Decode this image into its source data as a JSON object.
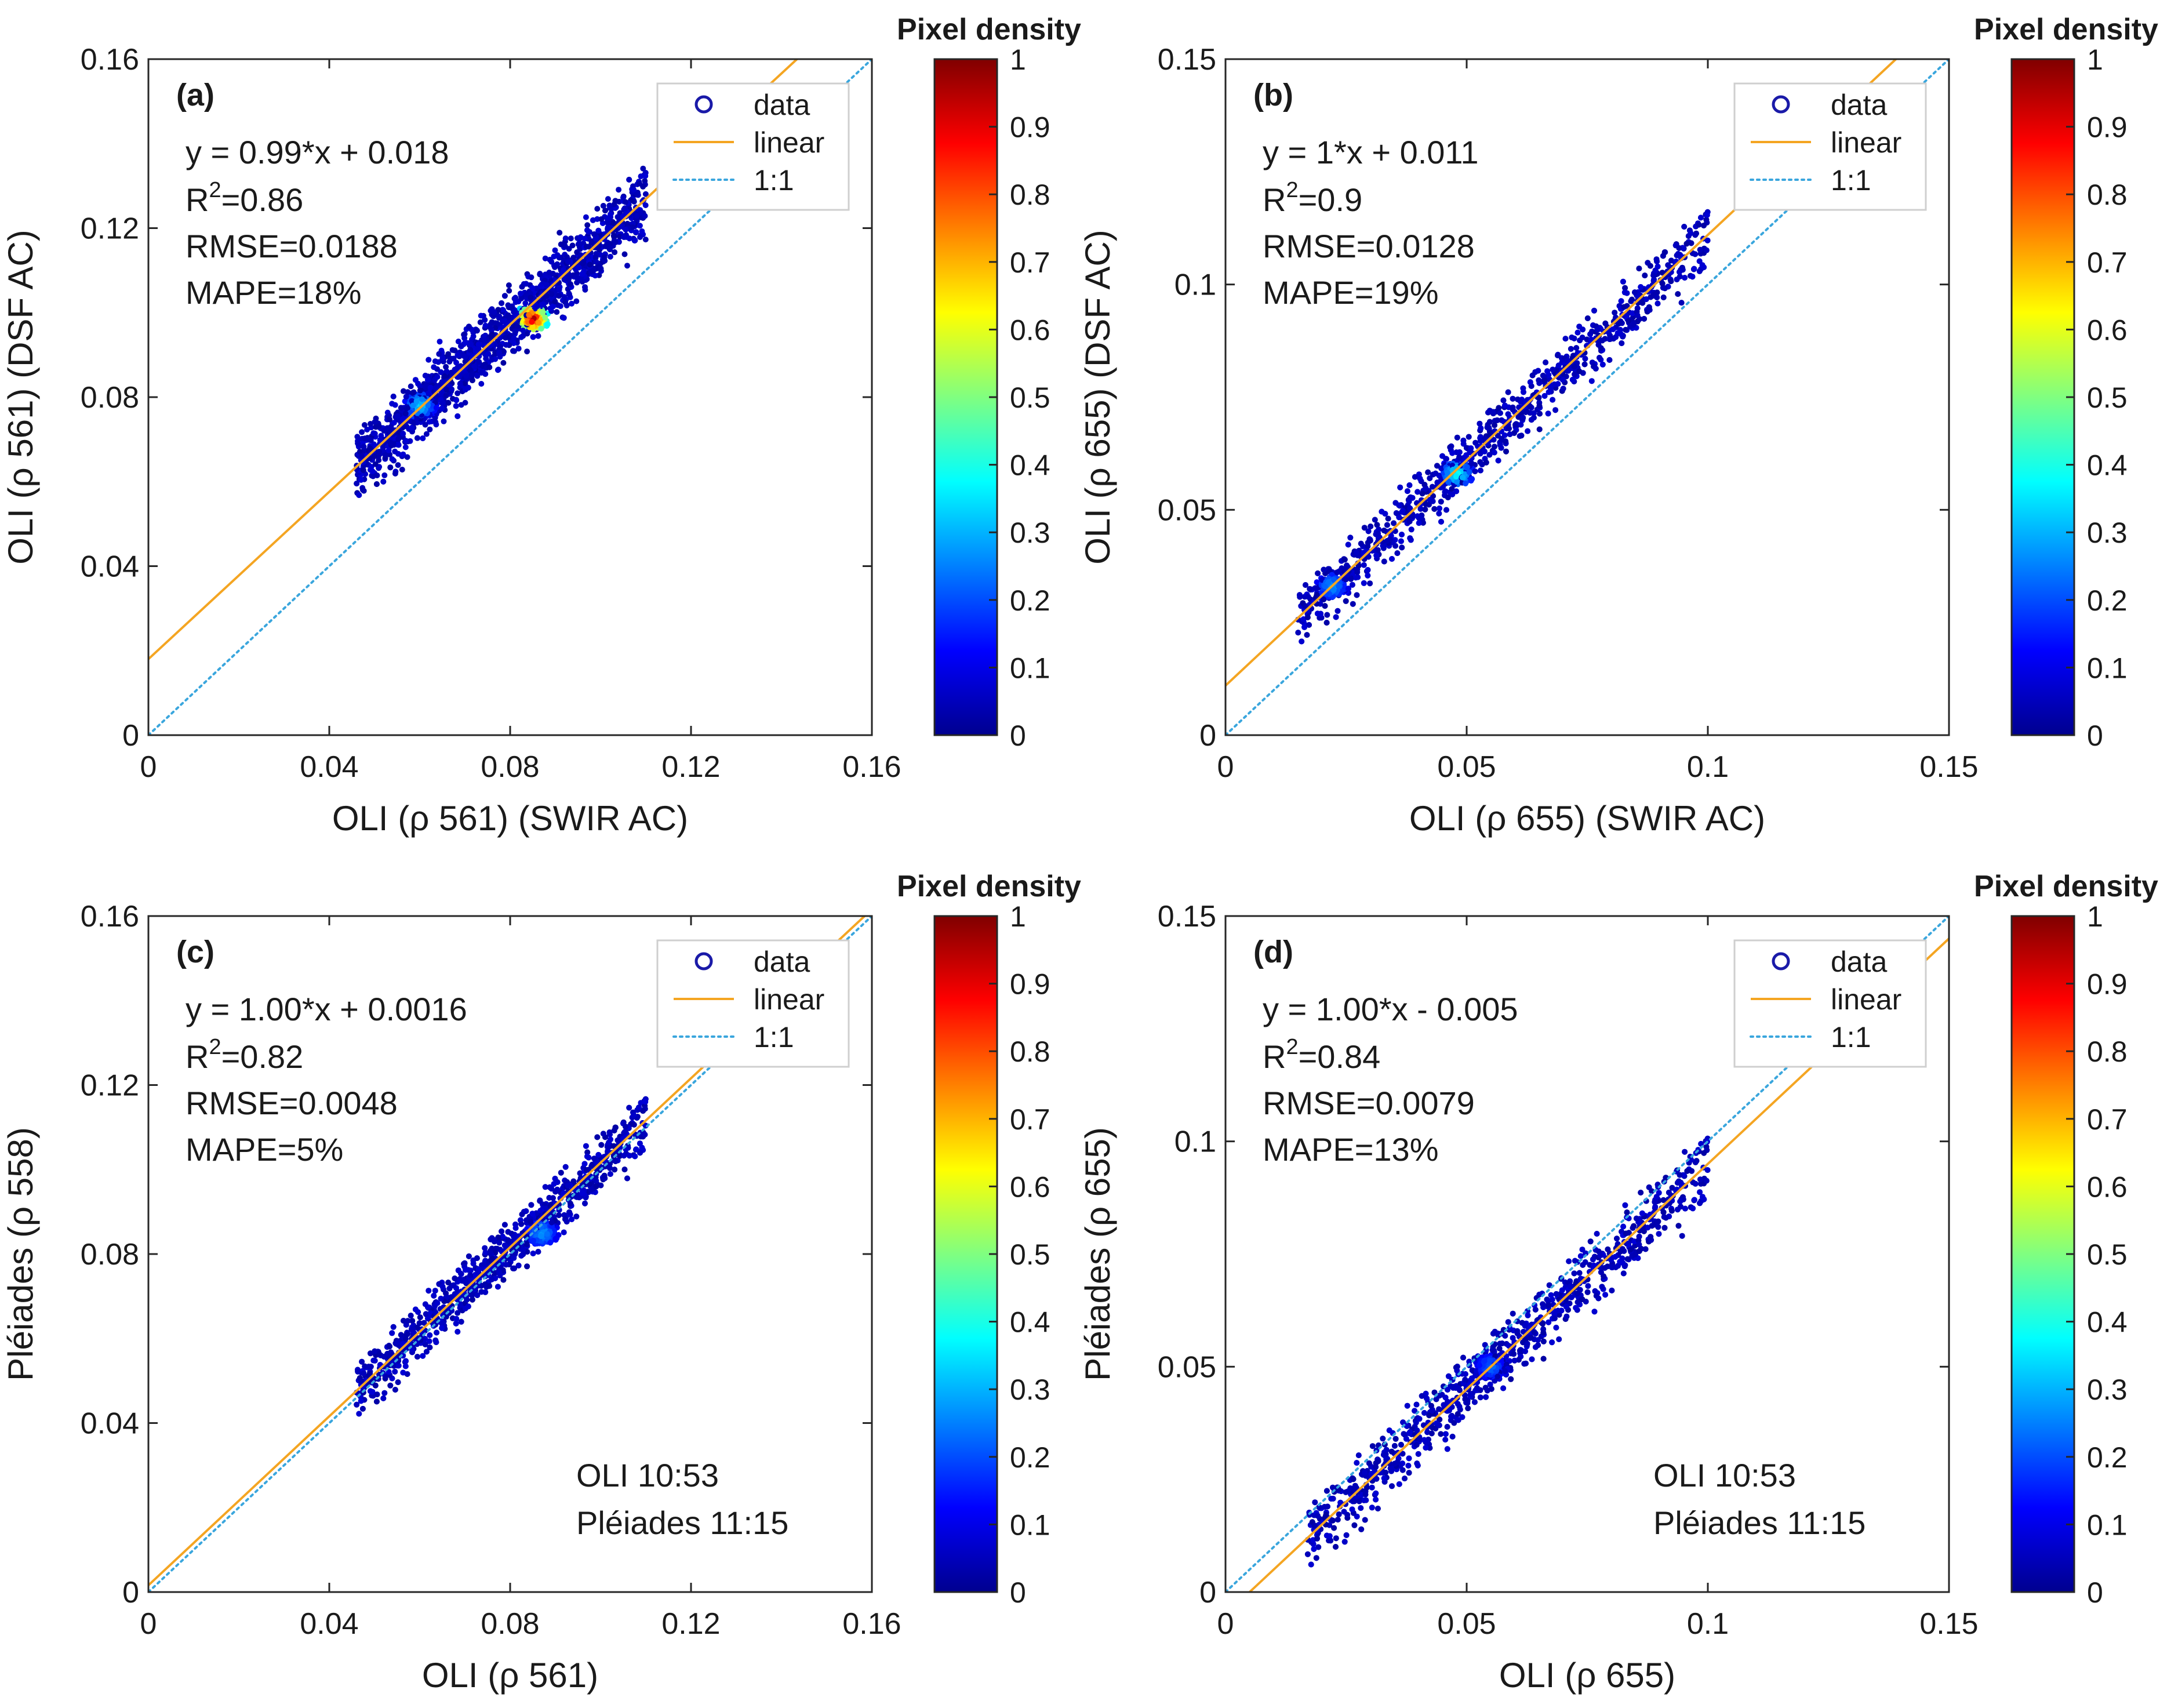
{
  "chart_data": [
    {
      "type": "scatter",
      "id": "a",
      "panel_label": "(a)",
      "xlabel": "OLI (ρ 561) (SWIR AC)",
      "ylabel": "OLI (ρ 561) (DSF AC)",
      "xlim": [
        0,
        0.16
      ],
      "ylim": [
        0,
        0.16
      ],
      "xticks": [
        0,
        0.04,
        0.08,
        0.12,
        0.16
      ],
      "yticks": [
        0,
        0.04,
        0.08,
        0.12,
        0.16
      ],
      "xtick_labels": [
        "0",
        "0.04",
        "0.08",
        "0.12",
        "0.16"
      ],
      "ytick_labels": [
        "0",
        "0.04",
        "0.08",
        "0.12",
        "0.16"
      ],
      "fit": {
        "slope": 0.99,
        "intercept": 0.018
      },
      "equation": "y = 0.99*x + 0.018",
      "r2_prefix": "R",
      "r2_sup": "2",
      "r2_value": "=0.86",
      "rmse": "RMSE=0.0188",
      "mape": "MAPE=18%",
      "note": [],
      "legend": [
        "data",
        "linear",
        "1:1"
      ],
      "data_range": {
        "x": [
          0.046,
          0.11
        ],
        "y_spread": 0.0055
      },
      "density_peaks": [
        {
          "x": 0.085,
          "y": 0.0985,
          "density": 1.0
        },
        {
          "x": 0.06,
          "y": 0.078,
          "density": 0.35
        }
      ]
    },
    {
      "type": "scatter",
      "id": "b",
      "panel_label": "(b)",
      "xlabel": "OLI (ρ 655) (SWIR AC)",
      "ylabel": "OLI (ρ 655) (DSF AC)",
      "xlim": [
        0,
        0.15
      ],
      "ylim": [
        0,
        0.15
      ],
      "xticks": [
        0,
        0.05,
        0.1,
        0.15
      ],
      "yticks": [
        0,
        0.05,
        0.1,
        0.15
      ],
      "xtick_labels": [
        "0",
        "0.05",
        "0.1",
        "0.15"
      ],
      "ytick_labels": [
        "0",
        "0.05",
        "0.1",
        "0.15"
      ],
      "fit": {
        "slope": 1.0,
        "intercept": 0.011
      },
      "equation": "y = 1*x + 0.011",
      "r2_prefix": "R",
      "r2_sup": "2",
      "r2_value": "=0.9",
      "rmse": "RMSE=0.0128",
      "mape": "MAPE=19%",
      "note": [],
      "legend": [
        "data",
        "linear",
        "1:1"
      ],
      "data_range": {
        "x": [
          0.015,
          0.1
        ],
        "y_spread": 0.0045
      },
      "density_peaks": [
        {
          "x": 0.048,
          "y": 0.058,
          "density": 0.4
        },
        {
          "x": 0.022,
          "y": 0.033,
          "density": 0.3
        }
      ]
    },
    {
      "type": "scatter",
      "id": "c",
      "panel_label": "(c)",
      "xlabel": "OLI (ρ 561)",
      "ylabel": "Pléiades (ρ 558)",
      "xlim": [
        0,
        0.16
      ],
      "ylim": [
        0,
        0.16
      ],
      "xticks": [
        0,
        0.04,
        0.08,
        0.12,
        0.16
      ],
      "yticks": [
        0,
        0.04,
        0.08,
        0.12,
        0.16
      ],
      "xtick_labels": [
        "0",
        "0.04",
        "0.08",
        "0.12",
        "0.16"
      ],
      "ytick_labels": [
        "0",
        "0.04",
        "0.08",
        "0.12",
        "0.16"
      ],
      "fit": {
        "slope": 1.0,
        "intercept": 0.0016
      },
      "equation": "y = 1.00*x + 0.0016",
      "r2_prefix": "R",
      "r2_sup": "2",
      "r2_value": "=0.82",
      "rmse": "RMSE=0.0048",
      "mape": "MAPE=5%",
      "note": [
        "OLI 10:53",
        "Pléiades 11:15"
      ],
      "legend": [
        "data",
        "linear",
        "1:1"
      ],
      "data_range": {
        "x": [
          0.046,
          0.11
        ],
        "y_spread": 0.0045
      },
      "density_peaks": [
        {
          "x": 0.087,
          "y": 0.085,
          "density": 0.3
        }
      ]
    },
    {
      "type": "scatter",
      "id": "d",
      "panel_label": "(d)",
      "xlabel": "OLI (ρ 655)",
      "ylabel": "Pléiades (ρ 655)",
      "xlim": [
        0,
        0.15
      ],
      "ylim": [
        0,
        0.15
      ],
      "xticks": [
        0,
        0.05,
        0.1,
        0.15
      ],
      "yticks": [
        0,
        0.05,
        0.1,
        0.15
      ],
      "xtick_labels": [
        "0",
        "0.05",
        "0.1",
        "0.15"
      ],
      "ytick_labels": [
        "0",
        "0.05",
        "0.1",
        "0.15"
      ],
      "fit": {
        "slope": 1.0,
        "intercept": -0.005
      },
      "equation": "y = 1.00*x - 0.005",
      "r2_prefix": "R",
      "r2_sup": "2",
      "r2_value": "=0.84",
      "rmse": "RMSE=0.0079",
      "mape": "MAPE=13%",
      "note": [
        "OLI 10:53",
        "Pléiades 11:15"
      ],
      "legend": [
        "data",
        "linear",
        "1:1"
      ],
      "data_range": {
        "x": [
          0.017,
          0.1
        ],
        "y_spread": 0.005
      },
      "density_peaks": [
        {
          "x": 0.055,
          "y": 0.05,
          "density": 0.25
        }
      ]
    }
  ],
  "colorbar": {
    "title": "Pixel density",
    "ticks": [
      "0",
      "0.1",
      "0.2",
      "0.3",
      "0.4",
      "0.5",
      "0.6",
      "0.7",
      "0.8",
      "0.9",
      "1"
    ]
  },
  "colors": {
    "fit_line": "#f4a522",
    "one_to_one": "#3aa6dd",
    "data_marker": "#1a1aa8",
    "jet": [
      "#00008f",
      "#0000ff",
      "#0080ff",
      "#00ffff",
      "#80ff80",
      "#ffff00",
      "#ff8000",
      "#ff0000",
      "#800000"
    ]
  }
}
